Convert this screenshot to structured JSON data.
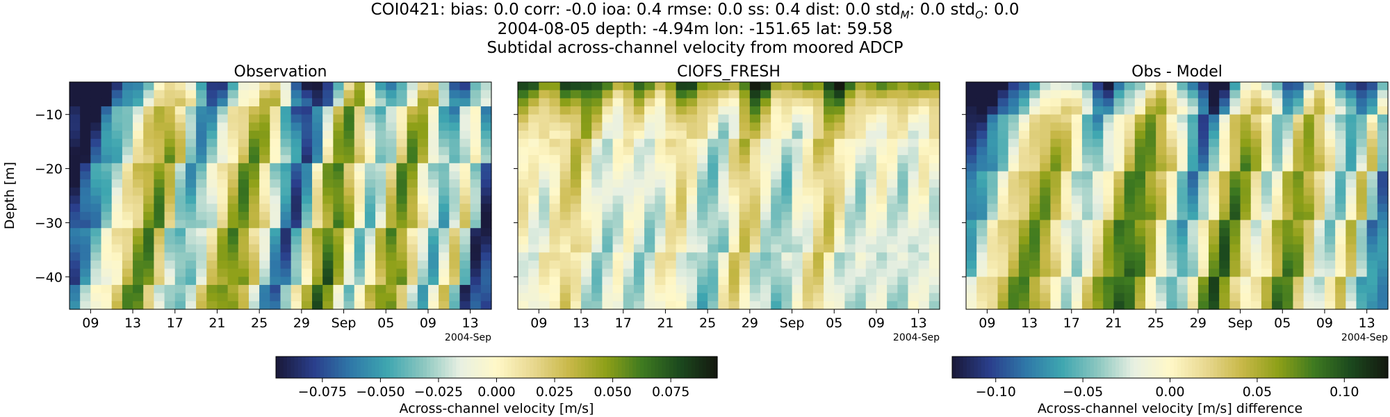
{
  "titles": {
    "line1_prefix": "COI0421: bias: 0.0  corr: -0.0  ioa: 0.4  rmse: 0.0  ss: 0.4  dist: 0.0  std",
    "line1_sub_m": "M",
    "line1_mid": ": 0.0  std",
    "line1_sub_o": "O",
    "line1_suffix": ": 0.0",
    "line2": "2004-08-05 depth: -4.94m lon: -151.65 lat: 59.58",
    "line3": "Subtidal across-channel velocity from moored ADCP"
  },
  "chart_data": [
    {
      "type": "heatmap",
      "title": "Observation",
      "ylabel": "Depth [m]",
      "ylim": [
        -46,
        -4
      ],
      "yticks": [
        -10,
        -20,
        -30,
        -40
      ],
      "xtick_labels": [
        "09",
        "13",
        "17",
        "21",
        "25",
        "29",
        "Sep",
        "05",
        "09",
        "13"
      ],
      "x_offset_label": "2004-Sep",
      "colorbar": {
        "label": "Across-channel velocity [m/s]",
        "range": [
          -0.095,
          0.095
        ],
        "ticks": [
          -0.075,
          -0.05,
          -0.025,
          0.0,
          0.025,
          0.05,
          0.075
        ],
        "tick_labels": [
          "−0.075",
          "−0.050",
          "−0.025",
          "0.000",
          "0.025",
          "0.050",
          "0.075"
        ]
      },
      "pattern": {
        "columns": [
          -0.09,
          -0.08,
          -0.06,
          -0.04,
          -0.02,
          0.0,
          0.02,
          0.04,
          0.05,
          0.02,
          -0.03,
          -0.05,
          -0.04,
          -0.02,
          0.01,
          0.03,
          0.05,
          0.04,
          0.01,
          -0.03,
          -0.06,
          -0.08,
          -0.05,
          0.0,
          0.04,
          0.06,
          0.03,
          -0.01,
          -0.04,
          -0.02,
          0.02,
          0.05,
          0.04,
          0.0,
          -0.03,
          -0.05,
          -0.02,
          0.01,
          -0.04,
          -0.09
        ],
        "surface_bias": -0.03,
        "bottom_bias": 0.01,
        "tilt": 0.9
      }
    },
    {
      "type": "heatmap",
      "title": "CIOFS_FRESH",
      "ylim": [
        -46,
        -4
      ],
      "yticks": [
        -10,
        -20,
        -30,
        -40
      ],
      "xtick_labels": [
        "09",
        "13",
        "17",
        "21",
        "25",
        "29",
        "Sep",
        "05",
        "09",
        "13"
      ],
      "x_offset_label": "2004-Sep",
      "pattern": {
        "columns": [
          0.01,
          0.0,
          -0.01,
          0.01,
          0.02,
          0.03,
          0.01,
          -0.01,
          -0.02,
          -0.01,
          0.0,
          -0.01,
          -0.02,
          -0.01,
          0.01,
          0.02,
          0.0,
          -0.02,
          -0.03,
          -0.02,
          0.01,
          0.03,
          0.02,
          -0.01,
          -0.02,
          -0.03,
          -0.01,
          0.0,
          0.02,
          0.03,
          0.01,
          -0.01,
          -0.02,
          -0.01,
          0.0,
          -0.01,
          -0.02,
          -0.01,
          0.0,
          -0.01
        ],
        "surface_bias": 0.06,
        "bottom_bias": -0.01,
        "tilt": 0.5
      }
    },
    {
      "type": "heatmap",
      "title": "Obs - Model",
      "ylim": [
        -46,
        -4
      ],
      "yticks": [
        -10,
        -20,
        -30,
        -40
      ],
      "xtick_labels": [
        "09",
        "13",
        "17",
        "21",
        "25",
        "29",
        "Sep",
        "05",
        "09",
        "13"
      ],
      "x_offset_label": "2004-Sep",
      "colorbar": {
        "label": "Across-channel velocity [m/s] difference",
        "range": [
          -0.125,
          0.125
        ],
        "ticks": [
          -0.1,
          -0.05,
          0.0,
          0.05,
          0.1
        ],
        "tick_labels": [
          "−0.10",
          "−0.05",
          "0.00",
          "0.05",
          "0.10"
        ]
      },
      "pattern": {
        "columns": [
          -0.1,
          -0.08,
          -0.05,
          -0.02,
          0.0,
          0.02,
          0.04,
          0.05,
          0.03,
          0.0,
          -0.04,
          -0.06,
          -0.03,
          0.0,
          0.03,
          0.06,
          0.07,
          0.05,
          0.02,
          -0.02,
          -0.06,
          -0.09,
          -0.06,
          -0.01,
          0.04,
          0.07,
          0.04,
          0.0,
          -0.04,
          -0.02,
          0.03,
          0.06,
          0.04,
          0.0,
          -0.04,
          -0.06,
          -0.03,
          0.02,
          -0.05,
          -0.1
        ],
        "surface_bias": -0.06,
        "bottom_bias": 0.03,
        "tilt": 1.0
      }
    }
  ],
  "colormap": [
    "#1a1a3c",
    "#2a3f8c",
    "#2f78a8",
    "#3ea6b0",
    "#8cc7c0",
    "#e8f0e2",
    "#fff8c8",
    "#e8d890",
    "#c8b848",
    "#8ea018",
    "#3e7a20",
    "#1c4a1e",
    "#141a10"
  ]
}
